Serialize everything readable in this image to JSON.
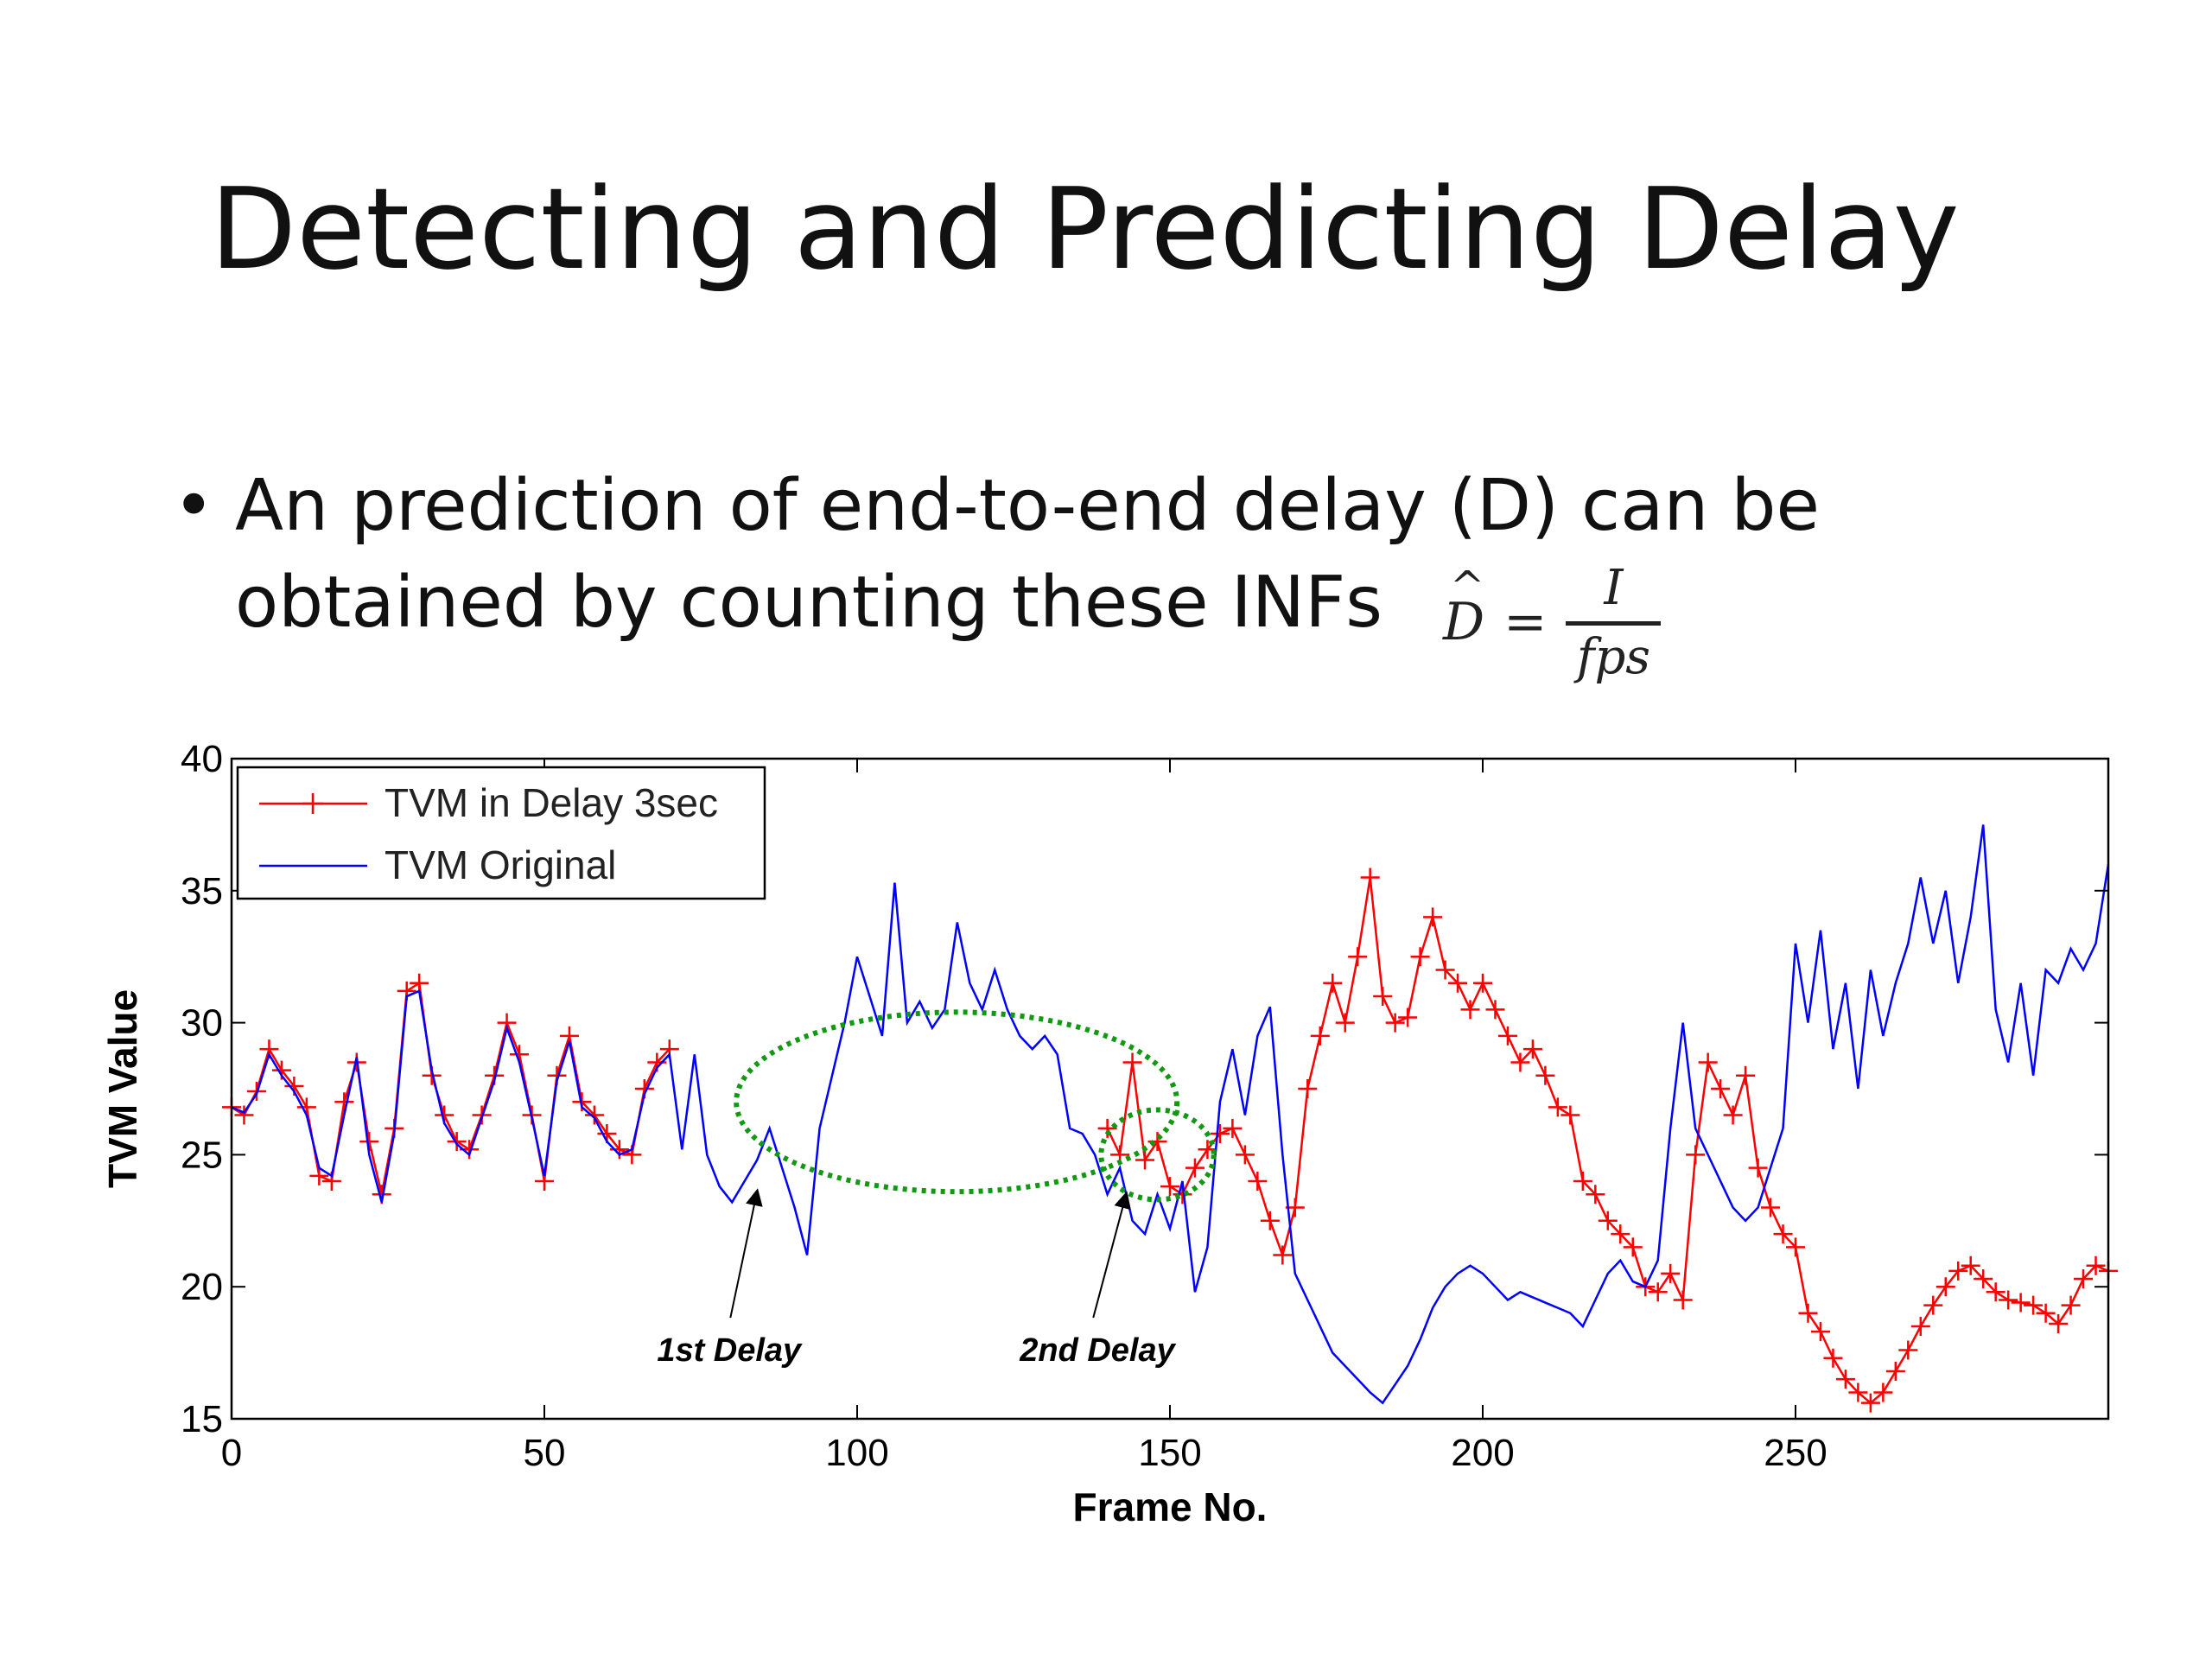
{
  "slide": {
    "title": "Detecting and Predicting Delay",
    "bullet_symbol": "•",
    "bullet_line1": "An prediction of end-to-end delay (D) can be",
    "bullet_line2": "obtained by counting these INFs",
    "formula": {
      "lhs": "D",
      "hat": "^",
      "eq": "=",
      "numerator": "I",
      "denominator": "fps"
    }
  },
  "chart_data": {
    "type": "line",
    "title": "",
    "xlabel": "Frame No.",
    "ylabel": "TVM Value",
    "xlim": [
      0,
      300
    ],
    "ylim": [
      15,
      40
    ],
    "x_ticks": [
      0,
      50,
      100,
      150,
      200,
      250
    ],
    "y_ticks": [
      15,
      20,
      25,
      30,
      35,
      40
    ],
    "grid": false,
    "legend_position": "top-left",
    "series": [
      {
        "name": "TVM in Delay 3sec",
        "color": "#ff0000",
        "marker": "plus",
        "points": [
          [
            0,
            26.8
          ],
          [
            2,
            26.5
          ],
          [
            4,
            27.4
          ],
          [
            6,
            29.0
          ],
          [
            8,
            28.2
          ],
          [
            10,
            27.6
          ],
          [
            12,
            26.8
          ],
          [
            14,
            24.2
          ],
          [
            16,
            24.0
          ],
          [
            18,
            27.0
          ],
          [
            20,
            28.5
          ],
          [
            22,
            25.5
          ],
          [
            24,
            23.5
          ],
          [
            26,
            26.0
          ],
          [
            28,
            31.2
          ],
          [
            30,
            31.5
          ],
          [
            32,
            28.0
          ],
          [
            34,
            26.5
          ],
          [
            36,
            25.5
          ],
          [
            38,
            25.2
          ],
          [
            40,
            26.5
          ],
          [
            42,
            28.0
          ],
          [
            44,
            30.0
          ],
          [
            46,
            28.8
          ],
          [
            48,
            26.5
          ],
          [
            50,
            24.0
          ],
          [
            52,
            28.0
          ],
          [
            54,
            29.5
          ],
          [
            56,
            27.0
          ],
          [
            58,
            26.5
          ],
          [
            60,
            25.8
          ],
          [
            62,
            25.2
          ],
          [
            64,
            25.0
          ],
          [
            66,
            27.5
          ],
          [
            68,
            28.5
          ],
          [
            70,
            29.0
          ],
          [
            140,
            26.0
          ],
          [
            142,
            25.0
          ],
          [
            144,
            28.5
          ],
          [
            146,
            24.8
          ],
          [
            148,
            25.5
          ],
          [
            150,
            23.8
          ],
          [
            152,
            23.5
          ],
          [
            154,
            24.5
          ],
          [
            156,
            25.2
          ],
          [
            158,
            25.8
          ],
          [
            160,
            26.0
          ],
          [
            162,
            25.0
          ],
          [
            164,
            24.0
          ],
          [
            166,
            22.5
          ],
          [
            168,
            21.2
          ],
          [
            170,
            23.0
          ],
          [
            172,
            27.5
          ],
          [
            174,
            29.5
          ],
          [
            176,
            31.5
          ],
          [
            178,
            30.0
          ],
          [
            180,
            32.5
          ],
          [
            182,
            35.5
          ],
          [
            184,
            31.0
          ],
          [
            186,
            30.0
          ],
          [
            188,
            30.2
          ],
          [
            190,
            32.5
          ],
          [
            192,
            34.0
          ],
          [
            194,
            32.0
          ],
          [
            196,
            31.5
          ],
          [
            198,
            30.5
          ],
          [
            200,
            31.5
          ],
          [
            202,
            30.5
          ],
          [
            204,
            29.5
          ],
          [
            206,
            28.5
          ],
          [
            208,
            29.0
          ],
          [
            210,
            28.0
          ],
          [
            212,
            26.8
          ],
          [
            214,
            26.5
          ],
          [
            216,
            24.0
          ],
          [
            218,
            23.5
          ],
          [
            220,
            22.5
          ],
          [
            222,
            22.0
          ],
          [
            224,
            21.5
          ],
          [
            226,
            20.0
          ],
          [
            228,
            19.8
          ],
          [
            230,
            20.5
          ],
          [
            232,
            19.5
          ],
          [
            234,
            25.0
          ],
          [
            236,
            28.5
          ],
          [
            238,
            27.5
          ],
          [
            240,
            26.5
          ],
          [
            242,
            28.0
          ],
          [
            244,
            24.5
          ],
          [
            246,
            23.0
          ],
          [
            248,
            22.0
          ],
          [
            250,
            21.5
          ],
          [
            252,
            19.0
          ],
          [
            254,
            18.3
          ],
          [
            256,
            17.3
          ],
          [
            258,
            16.5
          ],
          [
            260,
            16.0
          ],
          [
            262,
            15.6
          ],
          [
            264,
            16.0
          ],
          [
            266,
            16.8
          ],
          [
            268,
            17.6
          ],
          [
            270,
            18.5
          ],
          [
            272,
            19.3
          ],
          [
            274,
            20.0
          ],
          [
            276,
            20.6
          ],
          [
            278,
            20.8
          ],
          [
            280,
            20.3
          ],
          [
            282,
            19.8
          ],
          [
            284,
            19.5
          ],
          [
            286,
            19.4
          ],
          [
            288,
            19.3
          ],
          [
            290,
            19.0
          ],
          [
            292,
            18.6
          ],
          [
            294,
            19.3
          ],
          [
            296,
            20.3
          ],
          [
            298,
            20.8
          ],
          [
            300,
            20.6
          ]
        ]
      },
      {
        "name": "TVM Original",
        "color": "#0000ff",
        "marker": "none",
        "points": [
          [
            0,
            26.8
          ],
          [
            2,
            26.6
          ],
          [
            4,
            27.3
          ],
          [
            6,
            28.8
          ],
          [
            8,
            28.0
          ],
          [
            10,
            27.4
          ],
          [
            12,
            26.5
          ],
          [
            14,
            24.5
          ],
          [
            16,
            24.2
          ],
          [
            18,
            26.5
          ],
          [
            20,
            28.7
          ],
          [
            22,
            25.0
          ],
          [
            24,
            23.2
          ],
          [
            26,
            25.8
          ],
          [
            28,
            31.0
          ],
          [
            30,
            31.2
          ],
          [
            32,
            28.2
          ],
          [
            34,
            26.2
          ],
          [
            36,
            25.4
          ],
          [
            38,
            25.0
          ],
          [
            40,
            26.4
          ],
          [
            42,
            27.8
          ],
          [
            44,
            29.8
          ],
          [
            46,
            28.5
          ],
          [
            48,
            26.4
          ],
          [
            50,
            24.2
          ],
          [
            52,
            27.8
          ],
          [
            54,
            29.3
          ],
          [
            56,
            26.8
          ],
          [
            58,
            26.4
          ],
          [
            60,
            25.5
          ],
          [
            62,
            25.0
          ],
          [
            64,
            25.2
          ],
          [
            66,
            27.3
          ],
          [
            68,
            28.3
          ],
          [
            70,
            28.8
          ],
          [
            72,
            25.2
          ],
          [
            74,
            28.8
          ],
          [
            76,
            25.0
          ],
          [
            78,
            23.8
          ],
          [
            80,
            23.2
          ],
          [
            82,
            24.0
          ],
          [
            84,
            24.8
          ],
          [
            86,
            26.0
          ],
          [
            88,
            24.5
          ],
          [
            90,
            23.0
          ],
          [
            92,
            21.2
          ],
          [
            94,
            26.0
          ],
          [
            96,
            28.0
          ],
          [
            98,
            30.0
          ],
          [
            100,
            32.5
          ],
          [
            102,
            31.0
          ],
          [
            104,
            29.5
          ],
          [
            106,
            35.3
          ],
          [
            108,
            30.0
          ],
          [
            110,
            30.8
          ],
          [
            112,
            29.8
          ],
          [
            114,
            30.5
          ],
          [
            116,
            33.8
          ],
          [
            118,
            31.5
          ],
          [
            120,
            30.5
          ],
          [
            122,
            32.0
          ],
          [
            124,
            30.5
          ],
          [
            126,
            29.5
          ],
          [
            128,
            29.0
          ],
          [
            130,
            29.5
          ],
          [
            132,
            28.8
          ],
          [
            134,
            26.0
          ],
          [
            136,
            25.8
          ],
          [
            138,
            25.0
          ],
          [
            140,
            23.5
          ],
          [
            142,
            24.5
          ],
          [
            144,
            22.5
          ],
          [
            146,
            22.0
          ],
          [
            148,
            23.5
          ],
          [
            150,
            22.2
          ],
          [
            152,
            24.0
          ],
          [
            154,
            19.8
          ],
          [
            156,
            21.5
          ],
          [
            158,
            27.0
          ],
          [
            160,
            29.0
          ],
          [
            162,
            26.5
          ],
          [
            164,
            29.5
          ],
          [
            166,
            30.6
          ],
          [
            168,
            25.0
          ],
          [
            170,
            20.5
          ],
          [
            172,
            19.5
          ],
          [
            174,
            18.5
          ],
          [
            176,
            17.5
          ],
          [
            178,
            17.0
          ],
          [
            180,
            16.5
          ],
          [
            182,
            16.0
          ],
          [
            184,
            15.6
          ],
          [
            186,
            16.3
          ],
          [
            188,
            17.0
          ],
          [
            190,
            18.0
          ],
          [
            192,
            19.2
          ],
          [
            194,
            20.0
          ],
          [
            196,
            20.5
          ],
          [
            198,
            20.8
          ],
          [
            200,
            20.5
          ],
          [
            202,
            20.0
          ],
          [
            204,
            19.5
          ],
          [
            206,
            19.8
          ],
          [
            208,
            19.6
          ],
          [
            210,
            19.4
          ],
          [
            212,
            19.2
          ],
          [
            214,
            19.0
          ],
          [
            216,
            18.5
          ],
          [
            218,
            19.5
          ],
          [
            220,
            20.5
          ],
          [
            222,
            21.0
          ],
          [
            224,
            20.2
          ],
          [
            226,
            20.0
          ],
          [
            228,
            21.0
          ],
          [
            230,
            26.0
          ],
          [
            232,
            30.0
          ],
          [
            234,
            26.0
          ],
          [
            236,
            25.0
          ],
          [
            238,
            24.0
          ],
          [
            240,
            23.0
          ],
          [
            242,
            22.5
          ],
          [
            244,
            23.0
          ],
          [
            246,
            24.5
          ],
          [
            248,
            26.0
          ],
          [
            250,
            33.0
          ],
          [
            252,
            30.0
          ],
          [
            254,
            33.5
          ],
          [
            256,
            29.0
          ],
          [
            258,
            31.5
          ],
          [
            260,
            27.5
          ],
          [
            262,
            32.0
          ],
          [
            264,
            29.5
          ],
          [
            266,
            31.5
          ],
          [
            268,
            33.0
          ],
          [
            270,
            35.5
          ],
          [
            272,
            33.0
          ],
          [
            274,
            35.0
          ],
          [
            276,
            31.5
          ],
          [
            278,
            34.0
          ],
          [
            280,
            37.5
          ],
          [
            282,
            30.5
          ],
          [
            284,
            28.5
          ],
          [
            286,
            31.5
          ],
          [
            288,
            28.0
          ],
          [
            290,
            32.0
          ],
          [
            292,
            31.5
          ],
          [
            294,
            32.8
          ],
          [
            296,
            32.0
          ],
          [
            298,
            33.0
          ],
          [
            300,
            36.0
          ]
        ]
      }
    ],
    "annotations": [
      {
        "label": "1st Delay",
        "arrow_to": [
          84,
          23.6
        ],
        "text_at": [
          68,
          18.5
        ],
        "ellipse": {
          "center": [
            138,
            27.0
          ],
          "rx": 69,
          "ry": 3.4
        }
      },
      {
        "label": "2nd Delay",
        "arrow_to": [
          143,
          23.5
        ],
        "text_at": [
          126,
          18.5
        ],
        "ellipse": {
          "center": [
            148,
            25.0
          ],
          "rx": 9,
          "ry": 1.7
        }
      }
    ]
  }
}
